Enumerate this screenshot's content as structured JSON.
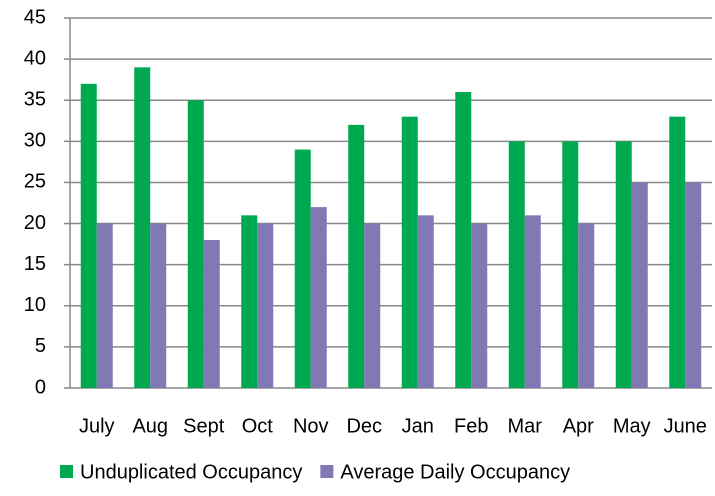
{
  "chart_data": {
    "type": "bar",
    "categories": [
      "July",
      "Aug",
      "Sept",
      "Oct",
      "Nov",
      "Dec",
      "Jan",
      "Feb",
      "Mar",
      "Apr",
      "May",
      "June"
    ],
    "series": [
      {
        "name": "Unduplicated Occupancy",
        "color": "#00a850",
        "values": [
          37,
          39,
          35,
          21,
          29,
          32,
          33,
          36,
          30,
          30,
          30,
          33
        ]
      },
      {
        "name": "Average Daily Occupancy",
        "color": "#8079b3",
        "values": [
          20,
          20,
          18,
          20,
          22,
          20,
          21,
          20,
          21,
          20,
          25,
          25
        ]
      }
    ],
    "ylim": [
      0,
      45
    ],
    "yticks": [
      0,
      5,
      10,
      15,
      20,
      25,
      30,
      35,
      40,
      45
    ],
    "grid": true,
    "legend": "bottom"
  }
}
